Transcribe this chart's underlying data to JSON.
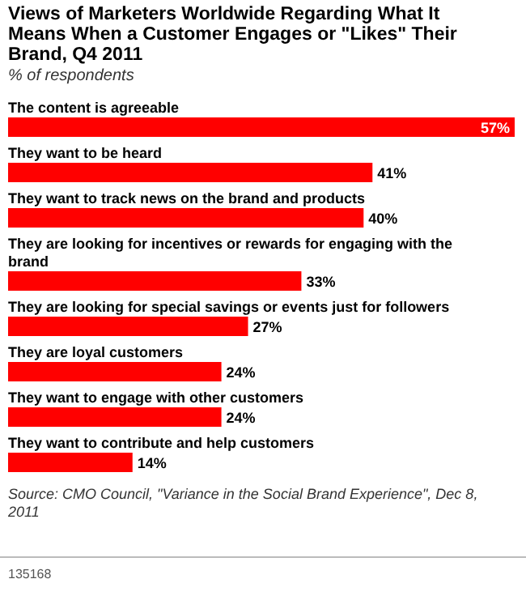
{
  "chart_data": {
    "type": "bar",
    "orientation": "horizontal",
    "title": "Views of Marketers Worldwide Regarding What It Means When a Customer Engages or \"Likes\" Their Brand, Q4 2011",
    "subtitle": "% of respondents",
    "categories": [
      "The content is agreeable",
      "They want to be heard",
      "They want to track news on the brand and products",
      "They are looking for incentives or rewards for engaging with the brand",
      "They are looking for special savings or events just for followers",
      "They are loyal customers",
      "They want to engage with other customers",
      "They want to contribute and help customers"
    ],
    "values": [
      57,
      41,
      40,
      33,
      27,
      24,
      24,
      14
    ],
    "value_labels": [
      "57%",
      "41%",
      "40%",
      "33%",
      "27%",
      "24%",
      "24%",
      "14%"
    ],
    "color": "#ff0000",
    "annotations": [
      "Source: CMO Council, \"Variance in the Social Brand Experience\", Dec 8, 2011",
      "135168"
    ]
  }
}
